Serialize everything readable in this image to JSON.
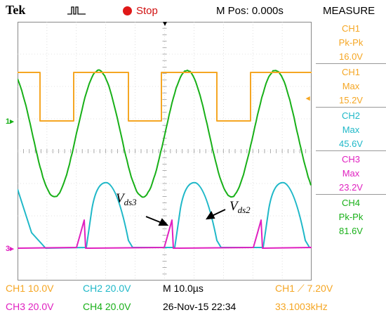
{
  "header": {
    "brand": "Tek",
    "run_state": "Stop",
    "m_pos": "M Pos: 0.000s",
    "panel_title": "MEASURE"
  },
  "markers": {
    "ch1": "1",
    "ch3": "3"
  },
  "annotations": {
    "vds3_main": "V",
    "vds3_sub": "ds3",
    "vds2_main": "V",
    "vds2_sub": "ds2"
  },
  "measurements": [
    {
      "channel": "CH1",
      "type": "Pk-Pk",
      "value": "16.0V",
      "color": "#f5a623"
    },
    {
      "channel": "CH1",
      "type": "Max",
      "value": "15.2V",
      "color": "#f5a623"
    },
    {
      "channel": "CH2",
      "type": "Max",
      "value": "45.6V",
      "color": "#1fb8c8"
    },
    {
      "channel": "CH3",
      "type": "Max",
      "value": "23.2V",
      "color": "#e020c0"
    },
    {
      "channel": "CH4",
      "type": "Pk-Pk",
      "value": "81.6V",
      "color": "#18b018"
    }
  ],
  "status": {
    "ch1_scale": "CH1  10.0V",
    "ch2_scale": "CH2  20.0V",
    "ch3_scale": "CH3  20.0V",
    "ch4_scale": "CH4  20.0V",
    "timebase": "M 10.0µs",
    "trigger": "CH1  ⟋  7.20V",
    "date": "26-Nov-15 22:34",
    "frequency": "33.1003kHz"
  },
  "colors": {
    "ch1": "#f5a623",
    "ch2": "#1fb8c8",
    "ch3": "#e020c0",
    "ch4": "#18b018",
    "stop": "#e01818"
  }
}
